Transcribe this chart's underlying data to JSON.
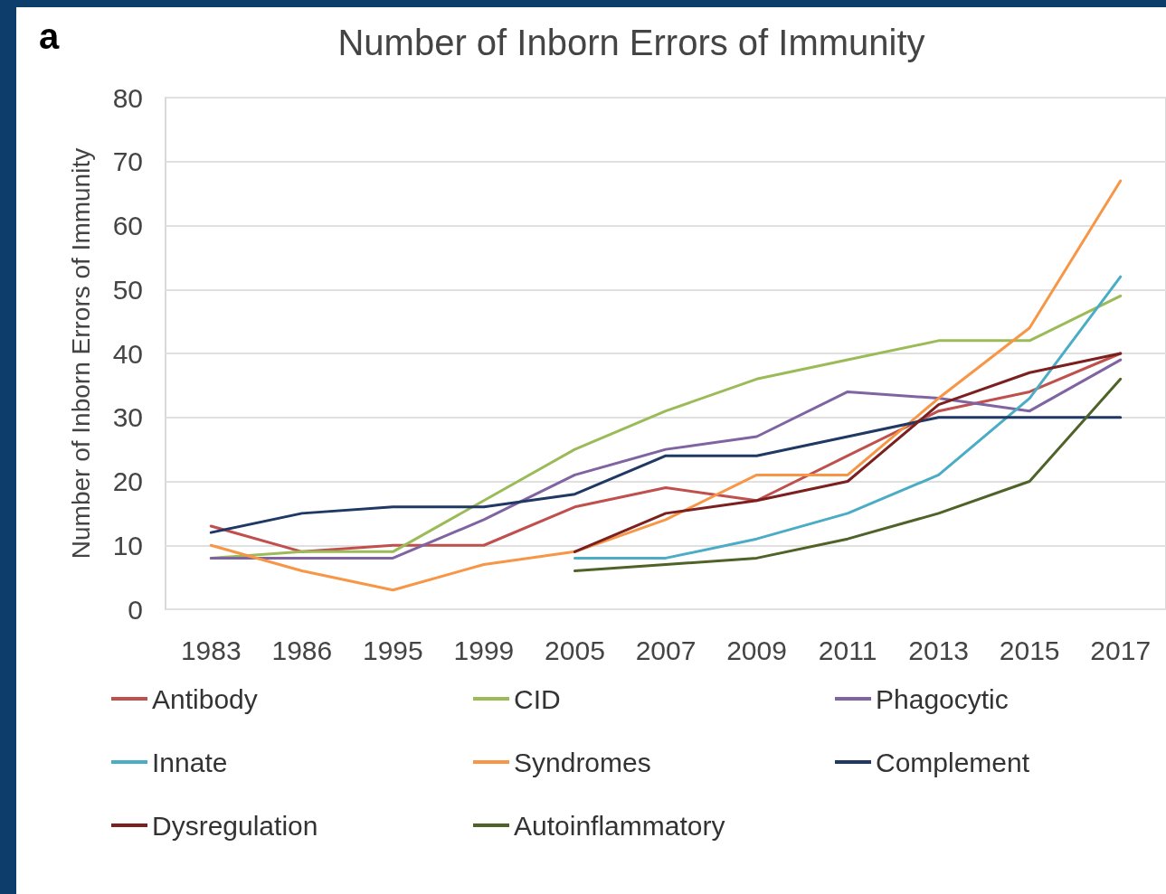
{
  "chart_data": {
    "type": "line",
    "title": "Number of Inborn Errors of Immunity",
    "ylabel": "Number of Inborn Errors of Immunity",
    "annotations": [
      "a"
    ],
    "categories": [
      "1983",
      "1986",
      "1995",
      "1999",
      "2005",
      "2007",
      "2009",
      "2011",
      "2013",
      "2015",
      "2017"
    ],
    "series": [
      {
        "name": "Antibody",
        "color": "#c0504d",
        "values": [
          13,
          9,
          10,
          10,
          16,
          19,
          17,
          24,
          31,
          34,
          40
        ]
      },
      {
        "name": "CID",
        "color": "#9bbb59",
        "values": [
          8,
          9,
          9,
          17,
          25,
          31,
          36,
          39,
          42,
          42,
          49
        ]
      },
      {
        "name": "Phagocytic",
        "color": "#8064a2",
        "values": [
          8,
          8,
          8,
          14,
          21,
          25,
          27,
          34,
          33,
          31,
          39
        ]
      },
      {
        "name": "Innate",
        "color": "#4bacc6",
        "values": [
          null,
          null,
          null,
          null,
          8,
          8,
          11,
          15,
          21,
          33,
          52
        ]
      },
      {
        "name": "Syndromes",
        "color": "#f79646",
        "values": [
          10,
          6,
          3,
          7,
          9,
          14,
          21,
          21,
          33,
          44,
          67
        ]
      },
      {
        "name": "Complement",
        "color": "#1f3864",
        "values": [
          12,
          15,
          16,
          16,
          18,
          24,
          24,
          27,
          30,
          30,
          30
        ]
      },
      {
        "name": "Dysregulation",
        "color": "#7b1f1f",
        "values": [
          null,
          null,
          null,
          null,
          9,
          15,
          17,
          20,
          32,
          37,
          40
        ]
      },
      {
        "name": "Autoinflammatory",
        "color": "#4f6228",
        "values": [
          null,
          null,
          null,
          null,
          6,
          7,
          8,
          11,
          15,
          20,
          36
        ]
      }
    ],
    "ylim": [
      0,
      80
    ],
    "yticks": [
      0,
      10,
      20,
      30,
      40,
      50,
      60,
      70,
      80
    ],
    "grid": "y",
    "legend": "bottom",
    "marker": "none",
    "line_style": "solid"
  }
}
